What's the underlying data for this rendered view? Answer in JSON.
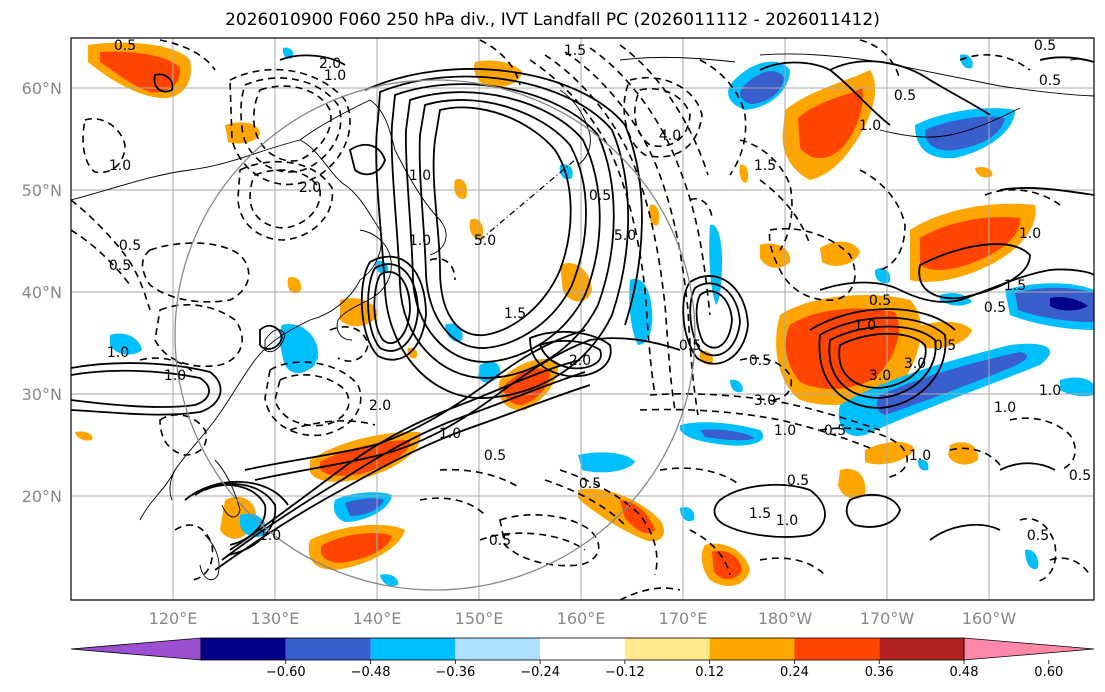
{
  "title": "2026010900 F060 250 hPa div., IVT Landfall PC (2026011112 - 2026011412)",
  "lat_labels": [
    "60°N",
    "50°N",
    "40°N",
    "30°N",
    "20°N"
  ],
  "lon_labels": [
    "120°E",
    "130°E",
    "140°E",
    "150°E",
    "160°E",
    "170°E",
    "180°W",
    "170°W",
    "160°W"
  ],
  "colorbar": {
    "levels": [
      "−0.60",
      "−0.48",
      "−0.36",
      "−0.24",
      "−0.12",
      "0.12",
      "0.24",
      "0.36",
      "0.48",
      "0.60"
    ],
    "colors": [
      "#9b4fd1",
      "#00008b",
      "#3a5fcd",
      "#00bfff",
      "#b0e0ff",
      "#ffffff",
      "#ffe98c",
      "#ffa500",
      "#ff4500",
      "#b22222",
      "#ff88aa"
    ]
  },
  "contour_labels": [
    "0.5",
    "2.0",
    "1.0",
    "1.5",
    "0.5",
    "1.0",
    "0.5",
    "0.5",
    "4.0",
    "1.5",
    "1.0",
    "0.5",
    "2.0",
    "1.0",
    "5.0",
    "5.0",
    "0.5",
    "1.0",
    "0.5",
    "0.5",
    "1.5",
    "1.0",
    "0.5",
    "1.0",
    "3.0",
    "3.0",
    "0.5",
    "2.0",
    "2.0",
    "1.0",
    "1.0",
    "3.0",
    "1.0",
    "0.5",
    "1.0",
    "0.5",
    "0.5",
    "1.5",
    "1.0",
    "0.5",
    "0.5",
    "1.0",
    "0.5",
    "0.5",
    "1.0",
    "1.5",
    "0.5",
    "0.5",
    "1.0",
    "1.0"
  ]
}
